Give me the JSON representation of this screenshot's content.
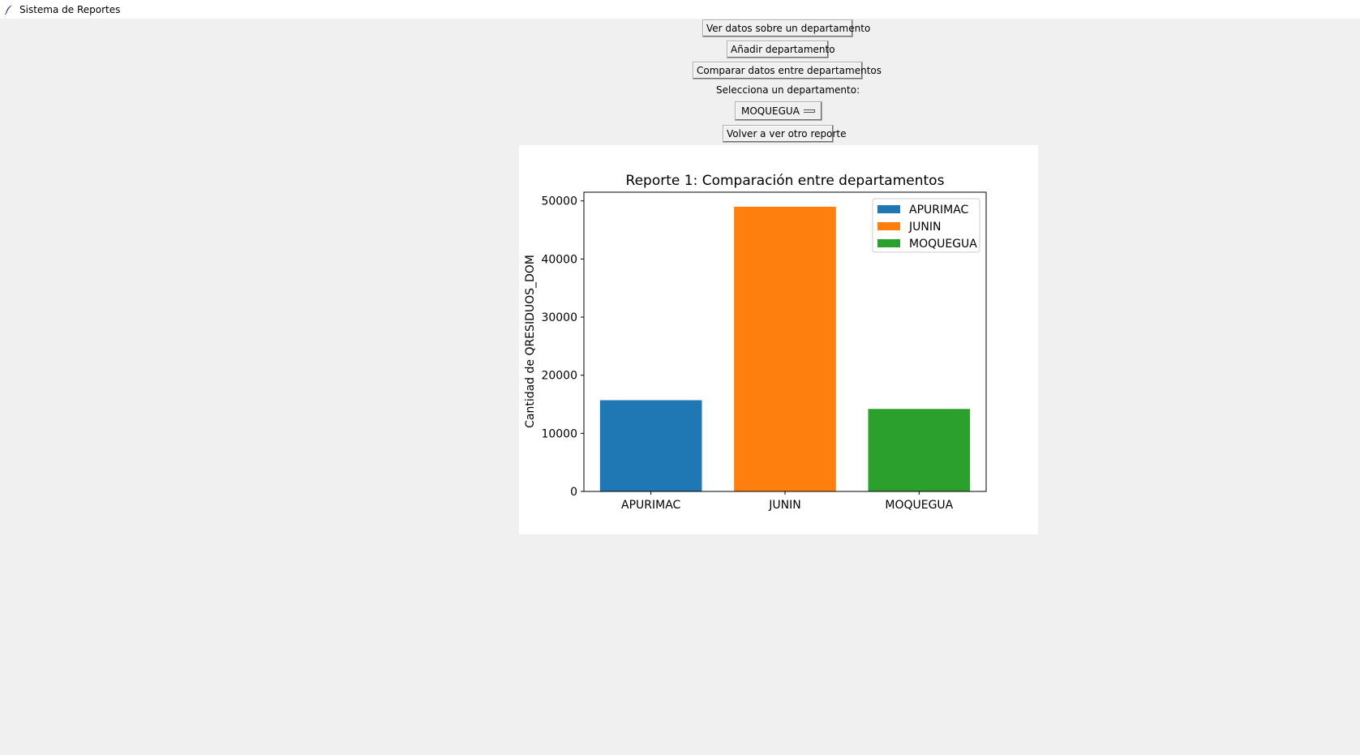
{
  "window": {
    "title": "Sistema de Reportes",
    "icon": "feather-icon"
  },
  "buttons": {
    "view_department": "Ver datos sobre un departamento",
    "add_department": "Añadir departamento",
    "compare_departments": "Comparar datos entre departamentos",
    "back_to_reports": "Volver a ver otro reporte"
  },
  "selector": {
    "label": "Selecciona un departamento:",
    "selected": "MOQUEGUA"
  },
  "chart_data": {
    "type": "bar",
    "title": "Reporte 1: Comparación entre departamentos",
    "xlabel": "",
    "ylabel": "Cantidad de QRESIDUOS_DOM",
    "categories": [
      "APURIMAC",
      "JUNIN",
      "MOQUEGUA"
    ],
    "values": [
      15700,
      49000,
      14200
    ],
    "colors": [
      "#1f77b4",
      "#ff7f0e",
      "#2ca02c"
    ],
    "ylim": [
      0,
      51500
    ],
    "yticks": [
      0,
      10000,
      20000,
      30000,
      40000,
      50000
    ],
    "ytick_labels": [
      "0",
      "10000",
      "20000",
      "30000",
      "40000",
      "50000"
    ],
    "legend": {
      "placement": "upper right",
      "entries": [
        "APURIMAC",
        "JUNIN",
        "MOQUEGUA"
      ]
    },
    "grid": false
  }
}
